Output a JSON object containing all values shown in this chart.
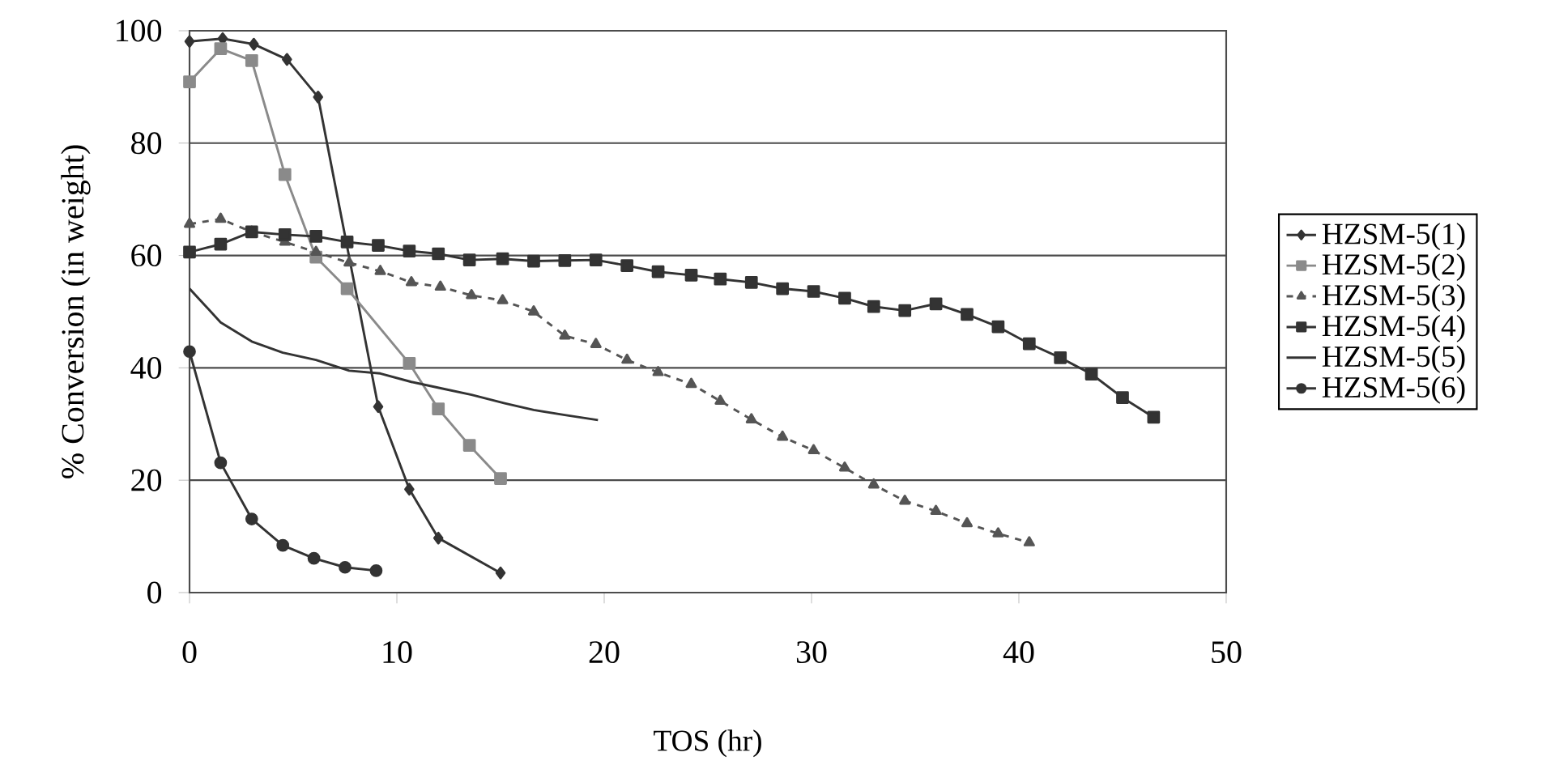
{
  "chart_data": {
    "type": "line",
    "xlabel": "TOS (hr)",
    "ylabel": "% Conversion (in weight)",
    "xlim": [
      0,
      50
    ],
    "xticks": [
      0,
      10,
      20,
      30,
      40,
      50
    ],
    "ylim": [
      0,
      100
    ],
    "yticks": [
      0,
      20,
      40,
      60,
      80,
      100
    ],
    "grid": "y",
    "legend": "right",
    "series": [
      {
        "name": "HZSM-5(1)",
        "color": "#333333",
        "marker": "diamond",
        "line_style": "solid",
        "x": [
          0,
          1.6,
          3.1,
          4.7,
          6.2,
          9.1,
          10.6,
          12.0,
          15.0
        ],
        "values": [
          98.1,
          98.6,
          97.6,
          94.9,
          88.2,
          33.1,
          18.4,
          9.7,
          3.5
        ]
      },
      {
        "name": "HZSM-5(2)",
        "color": "#8a8a8a",
        "marker": "square",
        "line_style": "solid",
        "x": [
          0,
          1.5,
          3.0,
          4.6,
          6.1,
          7.6,
          10.6,
          12.0,
          13.5,
          15.0
        ],
        "values": [
          90.9,
          96.8,
          94.7,
          74.4,
          59.7,
          54.1,
          40.8,
          32.7,
          26.2,
          20.3
        ]
      },
      {
        "name": "HZSM-5(3)",
        "color": "#555555",
        "marker": "triangle",
        "line_style": "dashed",
        "x": [
          0,
          1.5,
          3.0,
          4.6,
          6.1,
          7.7,
          9.2,
          10.7,
          12.1,
          13.6,
          15.1,
          16.6,
          18.1,
          19.6,
          21.1,
          22.6,
          24.2,
          25.6,
          27.1,
          28.6,
          30.1,
          31.6,
          33.0,
          34.5,
          36.0,
          37.5,
          39.0,
          40.5
        ],
        "values": [
          65.6,
          66.5,
          64.2,
          62.4,
          60.6,
          58.7,
          57.2,
          55.2,
          54.4,
          52.9,
          52.0,
          50.0,
          45.7,
          44.2,
          41.4,
          39.2,
          37.1,
          34.1,
          30.8,
          27.7,
          25.3,
          22.2,
          19.2,
          16.3,
          14.5,
          12.3,
          10.5,
          8.9
        ]
      },
      {
        "name": "HZSM-5(4)",
        "color": "#333333",
        "marker": "square",
        "line_style": "solid",
        "x": [
          0,
          1.5,
          3.0,
          4.6,
          6.1,
          7.6,
          9.1,
          10.6,
          12.0,
          13.5,
          15.1,
          16.6,
          18.1,
          19.6,
          21.1,
          22.6,
          24.2,
          25.6,
          27.1,
          28.6,
          30.1,
          31.6,
          33.0,
          34.5,
          36.0,
          37.5,
          39.0,
          40.5,
          42.0,
          43.5,
          45.0,
          46.5
        ],
        "values": [
          60.6,
          62.0,
          64.2,
          63.7,
          63.4,
          62.4,
          61.8,
          60.8,
          60.3,
          59.2,
          59.4,
          59.0,
          59.1,
          59.2,
          58.2,
          57.1,
          56.5,
          55.8,
          55.2,
          54.1,
          53.6,
          52.4,
          50.9,
          50.2,
          51.4,
          49.5,
          47.3,
          44.3,
          41.8,
          38.9,
          34.7,
          31.2
        ]
      },
      {
        "name": "HZSM-5(5)",
        "color": "#333333",
        "marker": "none",
        "line_style": "solid",
        "x": [
          0,
          1.5,
          3.0,
          4.5,
          6.1,
          7.7,
          9.2,
          10.7,
          12.2,
          13.6,
          15.2,
          16.6,
          18.1,
          19.7
        ],
        "values": [
          54.1,
          48.1,
          44.7,
          42.7,
          41.4,
          39.5,
          39.0,
          37.5,
          36.3,
          35.2,
          33.7,
          32.5,
          31.6,
          30.7
        ]
      },
      {
        "name": "HZSM-5(6)",
        "color": "#333333",
        "marker": "circle",
        "line_style": "solid",
        "x": [
          0,
          1.5,
          3.0,
          4.5,
          6.0,
          7.5,
          9.0
        ],
        "values": [
          42.9,
          23.1,
          13.1,
          8.4,
          6.1,
          4.5,
          3.9
        ]
      }
    ]
  }
}
